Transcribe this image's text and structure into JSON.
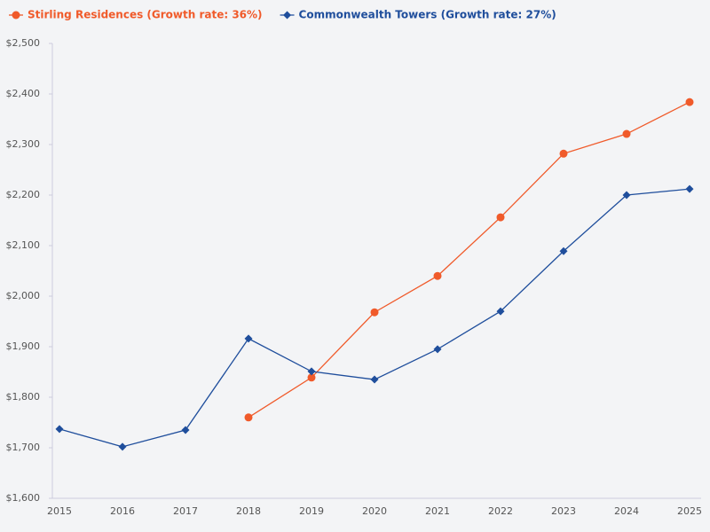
{
  "chart_data": {
    "type": "line",
    "categories": [
      "2015",
      "2016",
      "2017",
      "2018",
      "2019",
      "2020",
      "2021",
      "2022",
      "2023",
      "2024",
      "2025"
    ],
    "series": [
      {
        "name": "Stirling Residences (Growth rate: 36%)",
        "color": "#f05a2a",
        "marker": "circle",
        "values": [
          null,
          null,
          null,
          1760,
          1839,
          1968,
          2040,
          2156,
          2282,
          2321,
          2384
        ]
      },
      {
        "name": "Commonwealth Towers (Growth rate: 27%)",
        "color": "#1f4e9c",
        "marker": "diamond",
        "values": [
          1737,
          1702,
          1735,
          1916,
          1851,
          1835,
          1895,
          1970,
          2089,
          2200,
          2212
        ]
      }
    ],
    "ylim": [
      1600,
      2500
    ],
    "yticks": [
      {
        "value": 1600,
        "label": "$1,600"
      },
      {
        "value": 1700,
        "label": "$1,700"
      },
      {
        "value": 1800,
        "label": "$1,800"
      },
      {
        "value": 1900,
        "label": "$1,900"
      },
      {
        "value": 2000,
        "label": "$2,000"
      },
      {
        "value": 2100,
        "label": "$2,100"
      },
      {
        "value": 2200,
        "label": "$2,200"
      },
      {
        "value": 2300,
        "label": "$2,300"
      },
      {
        "value": 2400,
        "label": "$2,400"
      },
      {
        "value": 2500,
        "label": "$2,500"
      }
    ],
    "grid": false,
    "legend": "top-left"
  }
}
